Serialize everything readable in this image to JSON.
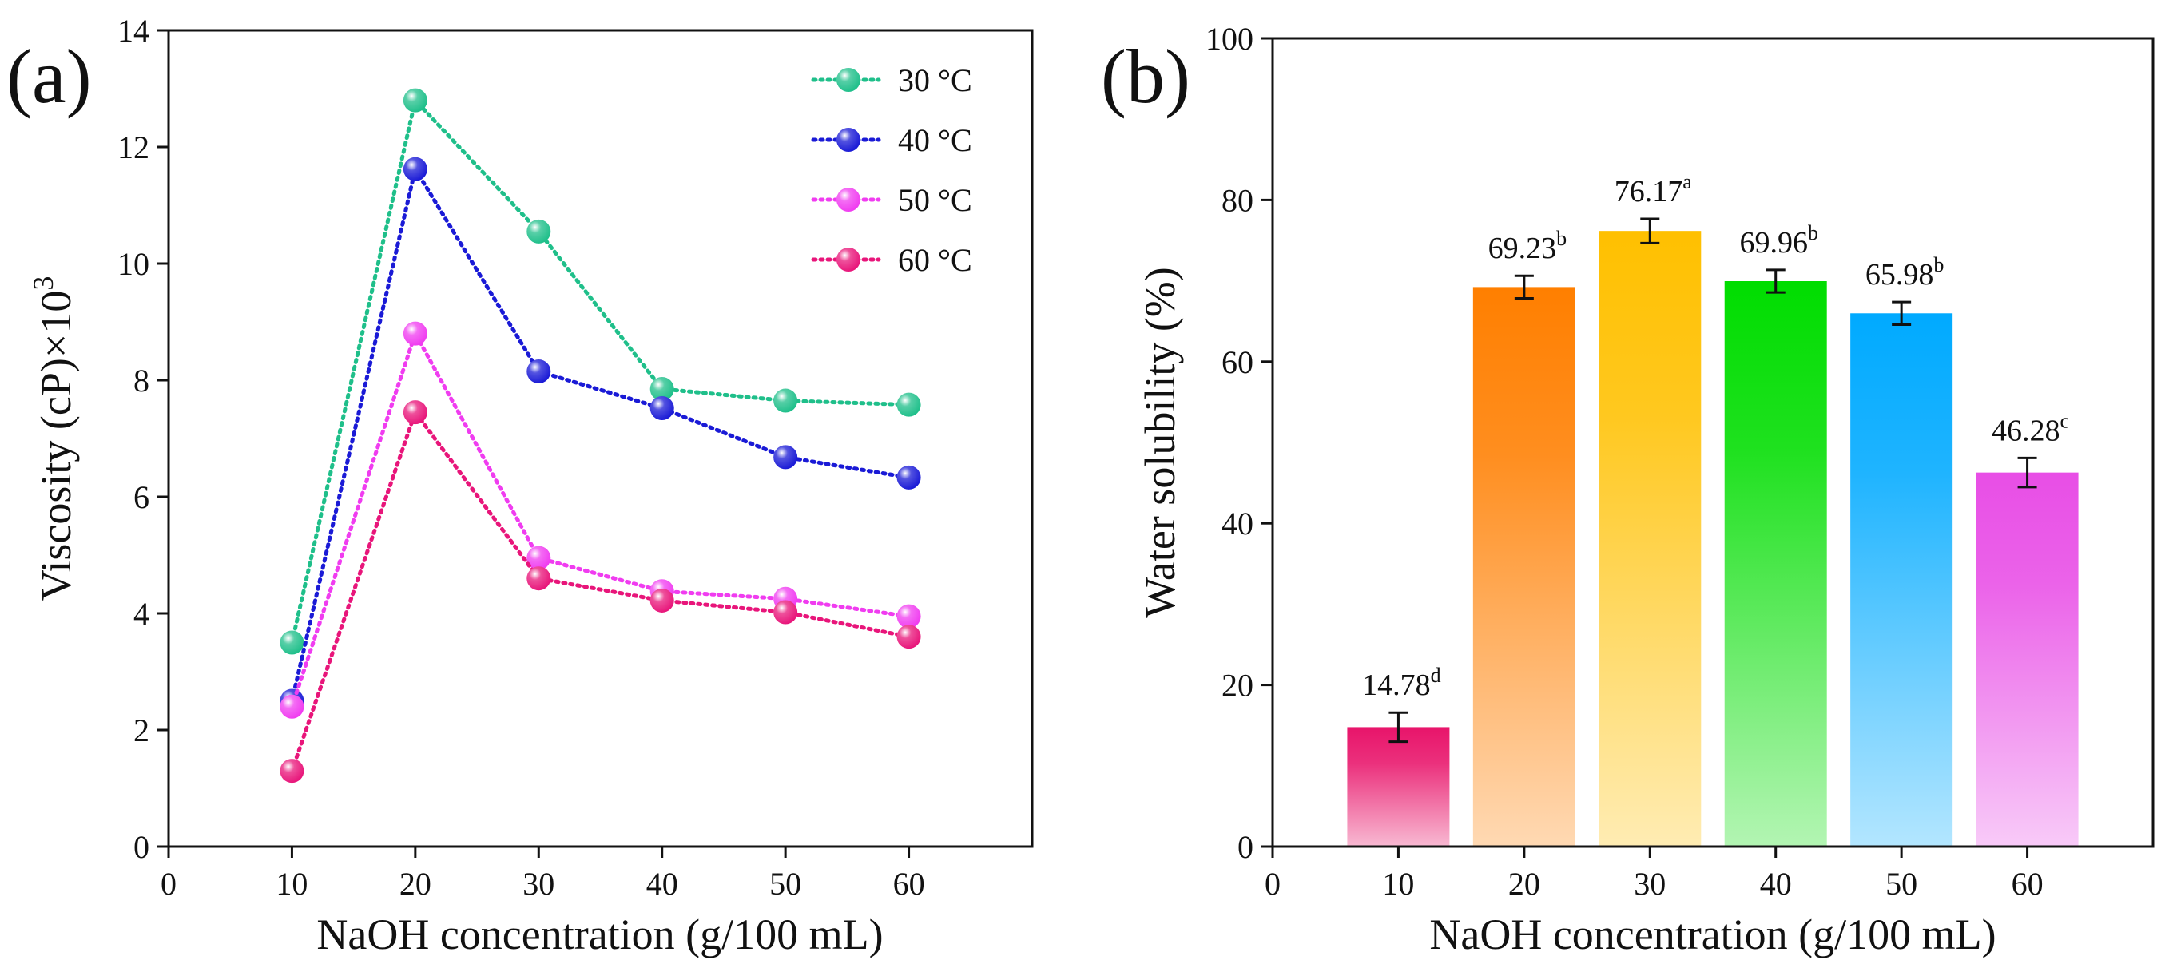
{
  "chart_data": [
    {
      "panel_label": "(a)",
      "type": "line",
      "xlabel": "NaOH concentration (g/100 mL)",
      "ylabel_main": "Viscosity (cP)",
      "ylabel_mult": "×10",
      "ylabel_exp": "3",
      "x": [
        10,
        20,
        30,
        40,
        50,
        60
      ],
      "xlim": [
        0,
        70
      ],
      "ylim": [
        0,
        14
      ],
      "xticks": [
        "0",
        "10",
        "20",
        "30",
        "40",
        "50",
        "60"
      ],
      "yticks": [
        "0",
        "2",
        "4",
        "6",
        "8",
        "10",
        "12",
        "14"
      ],
      "legend_position": "top-right",
      "series": [
        {
          "name": "30 °C",
          "color": "#1fbf8a",
          "values": [
            3.5,
            12.8,
            10.55,
            7.85,
            7.65,
            7.58
          ]
        },
        {
          "name": "40 °C",
          "color": "#1a1ad6",
          "values": [
            2.5,
            11.62,
            8.15,
            7.52,
            6.68,
            6.33
          ]
        },
        {
          "name": "50 °C",
          "color": "#f03cf0",
          "values": [
            2.4,
            8.8,
            4.95,
            4.38,
            4.25,
            3.95
          ]
        },
        {
          "name": "60 °C",
          "color": "#e8157a",
          "values": [
            1.3,
            7.45,
            4.6,
            4.22,
            4.02,
            3.6
          ]
        }
      ]
    },
    {
      "panel_label": "(b)",
      "type": "bar",
      "xlabel": "NaOH concentration (g/100 mL)",
      "ylabel": "Water solubility (%)",
      "categories": [
        "10",
        "20",
        "30",
        "40",
        "50",
        "60"
      ],
      "x": [
        10,
        20,
        30,
        40,
        50,
        60
      ],
      "values": [
        14.78,
        69.23,
        76.17,
        69.96,
        65.98,
        46.28
      ],
      "errors": [
        1.8,
        1.4,
        1.5,
        1.4,
        1.4,
        1.8
      ],
      "labels": [
        "14.78",
        "69.23",
        "76.17",
        "69.96",
        "65.98",
        "46.28"
      ],
      "letters": [
        "d",
        "b",
        "a",
        "b",
        "b",
        "c"
      ],
      "colors": [
        "#e8146a",
        "#ff7f00",
        "#ffc000",
        "#00dd00",
        "#00aaff",
        "#e84ee6"
      ],
      "xlim": [
        0,
        70
      ],
      "ylim": [
        0,
        100
      ],
      "xticks": [
        "0",
        "10",
        "20",
        "30",
        "40",
        "50",
        "60"
      ],
      "yticks": [
        "0",
        "20",
        "40",
        "60",
        "80",
        "100"
      ]
    }
  ]
}
